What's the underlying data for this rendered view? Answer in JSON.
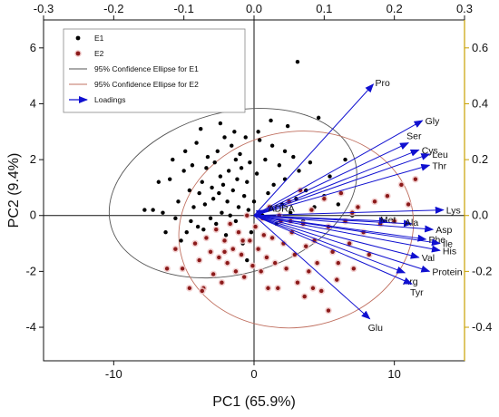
{
  "chart_data": {
    "type": "scatter",
    "title": "",
    "xlabel": "PC1 (65.9%)",
    "ylabel": "PC2 (9.4%)",
    "xlim": [
      -15,
      15
    ],
    "ylim": [
      -5.2,
      7
    ],
    "x_ticks": [
      "-10",
      "0",
      "10"
    ],
    "y_ticks": [
      "-4",
      "-2",
      "0",
      "2",
      "4",
      "6"
    ],
    "top_axis": {
      "range": [
        -0.3,
        0.3
      ],
      "ticks": [
        "-0.3",
        "-0.2",
        "-0.1",
        "0.0",
        "0.1",
        "0.2",
        "0.3"
      ]
    },
    "right_axis": {
      "range": [
        -0.52,
        0.7
      ],
      "ticks": [
        "-0.4",
        "-0.2",
        "0.0",
        "0.2",
        "0.4",
        "0.6"
      ]
    },
    "colors": {
      "E1": "#000000",
      "E2": "#8b1a1a",
      "E2_halo": "#f0c8c8",
      "ellipse_E1": "#555555",
      "ellipse_E2": "#c07060",
      "loadings": "#1010d0",
      "right_axis": "#c8a000"
    },
    "legend": {
      "position": "top-left",
      "items": [
        {
          "key": "E1",
          "label": "E1"
        },
        {
          "key": "E2",
          "label": "E2"
        },
        {
          "key": "ell1",
          "label": "95% Confidence Ellipse for E1"
        },
        {
          "key": "ell2",
          "label": "95% Confidence Ellipse for E2"
        },
        {
          "key": "load",
          "label": "Loadings"
        }
      ]
    },
    "ellipses": [
      {
        "name": "95% Confidence Ellipse for E1",
        "center": [
          -1.5,
          0.8
        ],
        "rx": 9.0,
        "ry": 2.9,
        "angle_deg": 15
      },
      {
        "name": "95% Confidence Ellipse for E2",
        "center": [
          3.0,
          -0.5
        ],
        "rx": 8.4,
        "ry": 3.5,
        "angle_deg": 10
      }
    ],
    "loadings": [
      {
        "label": "Pro",
        "x": 0.17,
        "y": 0.47
      },
      {
        "label": "Gly",
        "x": 0.24,
        "y": 0.34
      },
      {
        "label": "Ser",
        "x": 0.22,
        "y": 0.26
      },
      {
        "label": "Cys",
        "x": 0.235,
        "y": 0.235
      },
      {
        "label": "Leu",
        "x": 0.25,
        "y": 0.22
      },
      {
        "label": "Thr",
        "x": 0.25,
        "y": 0.18
      },
      {
        "label": "ADRA",
        "x": 0.015,
        "y": 0.02
      },
      {
        "label": "Lys",
        "x": 0.27,
        "y": 0.02
      },
      {
        "label": "Met",
        "x": 0.19,
        "y": -0.02
      },
      {
        "label": "Ala",
        "x": 0.225,
        "y": -0.03
      },
      {
        "label": "Asp",
        "x": 0.255,
        "y": -0.05
      },
      {
        "label": "Phe",
        "x": 0.245,
        "y": -0.085
      },
      {
        "label": "Ile",
        "x": 0.265,
        "y": -0.1
      },
      {
        "label": "His",
        "x": 0.265,
        "y": -0.125
      },
      {
        "label": "Val",
        "x": 0.235,
        "y": -0.15
      },
      {
        "label": "Protein",
        "x": 0.25,
        "y": -0.2
      },
      {
        "label": "Arg",
        "x": 0.215,
        "y": -0.205
      },
      {
        "label": "Tyr",
        "x": 0.225,
        "y": -0.245
      },
      {
        "label": "Glu",
        "x": 0.165,
        "y": -0.37
      }
    ],
    "series": [
      {
        "name": "E1",
        "points": [
          [
            -7.8,
            0.2
          ],
          [
            -7.2,
            0.2
          ],
          [
            -6.8,
            1.2
          ],
          [
            -6.5,
            0.1
          ],
          [
            -6.0,
            1.3
          ],
          [
            -5.6,
            -0.1
          ],
          [
            -5.4,
            0.5
          ],
          [
            -5.2,
            -0.9
          ],
          [
            -5.0,
            1.6
          ],
          [
            -4.8,
            -0.6
          ],
          [
            -4.6,
            0.9
          ],
          [
            -4.5,
            -0.2
          ],
          [
            -4.4,
            1.8
          ],
          [
            -4.3,
            0.3
          ],
          [
            -4.1,
            2.6
          ],
          [
            -4.0,
            -0.4
          ],
          [
            -3.9,
            0.8
          ],
          [
            -3.7,
            1.2
          ],
          [
            -3.6,
            -0.5
          ],
          [
            -3.5,
            0.4
          ],
          [
            -3.4,
            1.7
          ],
          [
            -3.3,
            2.1
          ],
          [
            -3.1,
            -0.1
          ],
          [
            -3.0,
            1.0
          ],
          [
            -2.9,
            0.6
          ],
          [
            -2.8,
            1.9
          ],
          [
            -2.7,
            -0.3
          ],
          [
            -2.6,
            2.3
          ],
          [
            -2.5,
            0.8
          ],
          [
            -2.4,
            1.4
          ],
          [
            -2.3,
            0.1
          ],
          [
            -2.2,
            1.1
          ],
          [
            -2.1,
            2.8
          ],
          [
            -2.0,
            -0.7
          ],
          [
            -1.9,
            0.5
          ],
          [
            -1.8,
            1.6
          ],
          [
            -1.7,
            0.0
          ],
          [
            -1.6,
            2.5
          ],
          [
            -1.5,
            0.9
          ],
          [
            -1.4,
            3.0
          ],
          [
            -1.3,
            -0.2
          ],
          [
            -1.2,
            1.3
          ],
          [
            -1.1,
            0.3
          ],
          [
            -1.0,
            2.2
          ],
          [
            -0.9,
            1.7
          ],
          [
            -0.8,
            -1.0
          ],
          [
            -0.7,
            0.7
          ],
          [
            -0.6,
            2.8
          ],
          [
            -0.5,
            1.2
          ],
          [
            -0.4,
            0.2
          ],
          [
            -0.3,
            1.9
          ],
          [
            -0.2,
            -0.6
          ],
          [
            0.0,
            0.5
          ],
          [
            0.2,
            1.5
          ],
          [
            0.4,
            2.7
          ],
          [
            0.6,
            0.0
          ],
          [
            0.8,
            2.0
          ],
          [
            1.0,
            0.8
          ],
          [
            1.2,
            3.4
          ],
          [
            1.4,
            1.1
          ],
          [
            1.6,
            -0.3
          ],
          [
            1.8,
            1.8
          ],
          [
            2.0,
            0.4
          ],
          [
            2.2,
            1.3
          ],
          [
            2.4,
            3.2
          ],
          [
            2.6,
            0.1
          ],
          [
            2.8,
            2.1
          ],
          [
            3.0,
            0.6
          ],
          [
            3.2,
            1.6
          ],
          [
            3.5,
            -0.2
          ],
          [
            3.7,
            0.9
          ],
          [
            4.0,
            1.9
          ],
          [
            4.3,
            0.3
          ],
          [
            4.6,
            3.5
          ],
          [
            5.0,
            0.7
          ],
          [
            5.4,
            1.4
          ],
          [
            6.0,
            0.4
          ],
          [
            6.5,
            2.0
          ],
          [
            7.0,
            0.0
          ],
          [
            3.1,
            5.5
          ],
          [
            -5.8,
            2.0
          ],
          [
            -6.3,
            -0.6
          ],
          [
            -4.9,
            2.3
          ],
          [
            -3.8,
            3.1
          ],
          [
            -2.4,
            3.3
          ],
          [
            -1.3,
            2.0
          ],
          [
            0.3,
            3.0
          ],
          [
            1.3,
            2.5
          ],
          [
            2.2,
            2.3
          ],
          [
            -0.5,
            -1.6
          ]
        ]
      },
      {
        "name": "E2",
        "points": [
          [
            -6.2,
            -1.9
          ],
          [
            -5.6,
            -1.2
          ],
          [
            -5.1,
            -1.9
          ],
          [
            -4.6,
            -2.6
          ],
          [
            -4.2,
            -1.0
          ],
          [
            -3.9,
            -1.6
          ],
          [
            -3.6,
            -2.6
          ],
          [
            -3.4,
            -0.8
          ],
          [
            -3.1,
            -1.3
          ],
          [
            -2.9,
            -2.1
          ],
          [
            -2.7,
            -0.5
          ],
          [
            -2.5,
            -1.5
          ],
          [
            -2.3,
            -2.4
          ],
          [
            -2.1,
            -0.9
          ],
          [
            -1.9,
            -1.7
          ],
          [
            -1.7,
            -0.3
          ],
          [
            -1.5,
            -1.2
          ],
          [
            -1.3,
            -2.0
          ],
          [
            -1.1,
            -0.6
          ],
          [
            -0.9,
            -1.4
          ],
          [
            -0.7,
            -2.2
          ],
          [
            -0.5,
            0.0
          ],
          [
            -0.3,
            -0.9
          ],
          [
            -0.1,
            -1.8
          ],
          [
            0.1,
            -0.4
          ],
          [
            0.3,
            -1.2
          ],
          [
            0.5,
            -2.0
          ],
          [
            0.7,
            -0.7
          ],
          [
            0.9,
            -1.5
          ],
          [
            1.1,
            0.3
          ],
          [
            1.3,
            -0.8
          ],
          [
            1.5,
            -1.7
          ],
          [
            1.7,
            -2.6
          ],
          [
            1.9,
            -0.2
          ],
          [
            2.1,
            -1.0
          ],
          [
            2.3,
            -1.9
          ],
          [
            2.5,
            0.5
          ],
          [
            2.7,
            -0.6
          ],
          [
            2.9,
            -1.4
          ],
          [
            3.1,
            -2.4
          ],
          [
            3.3,
            0.9
          ],
          [
            3.5,
            -0.3
          ],
          [
            3.7,
            -1.1
          ],
          [
            3.9,
            -2.0
          ],
          [
            4.1,
            0.2
          ],
          [
            4.3,
            -0.9
          ],
          [
            4.5,
            -1.7
          ],
          [
            4.8,
            -2.7
          ],
          [
            5.0,
            0.6
          ],
          [
            5.3,
            -0.4
          ],
          [
            5.6,
            -1.3
          ],
          [
            5.9,
            -2.3
          ],
          [
            6.2,
            0.8
          ],
          [
            6.5,
            -0.2
          ],
          [
            6.8,
            -1.0
          ],
          [
            7.1,
            -1.9
          ],
          [
            7.4,
            0.3
          ],
          [
            7.8,
            -0.6
          ],
          [
            8.2,
            -1.4
          ],
          [
            8.6,
            0.5
          ],
          [
            9.0,
            -0.3
          ],
          [
            9.5,
            0.7
          ],
          [
            10.0,
            -0.2
          ],
          [
            10.5,
            1.1
          ],
          [
            11.0,
            0.4
          ],
          [
            11.5,
            1.3
          ],
          [
            5.3,
            -3.4
          ],
          [
            3.6,
            -2.9
          ],
          [
            -3.7,
            -2.7
          ],
          [
            1.0,
            -2.6
          ],
          [
            4.2,
            -2.6
          ],
          [
            6.0,
            -1.7
          ],
          [
            7.0,
            0.1
          ],
          [
            2.6,
            -0.2
          ],
          [
            -0.8,
            -0.9
          ],
          [
            -2.1,
            -1.3
          ],
          [
            0.6,
            -0.1
          ],
          [
            1.8,
            0.0
          ]
        ]
      }
    ]
  }
}
